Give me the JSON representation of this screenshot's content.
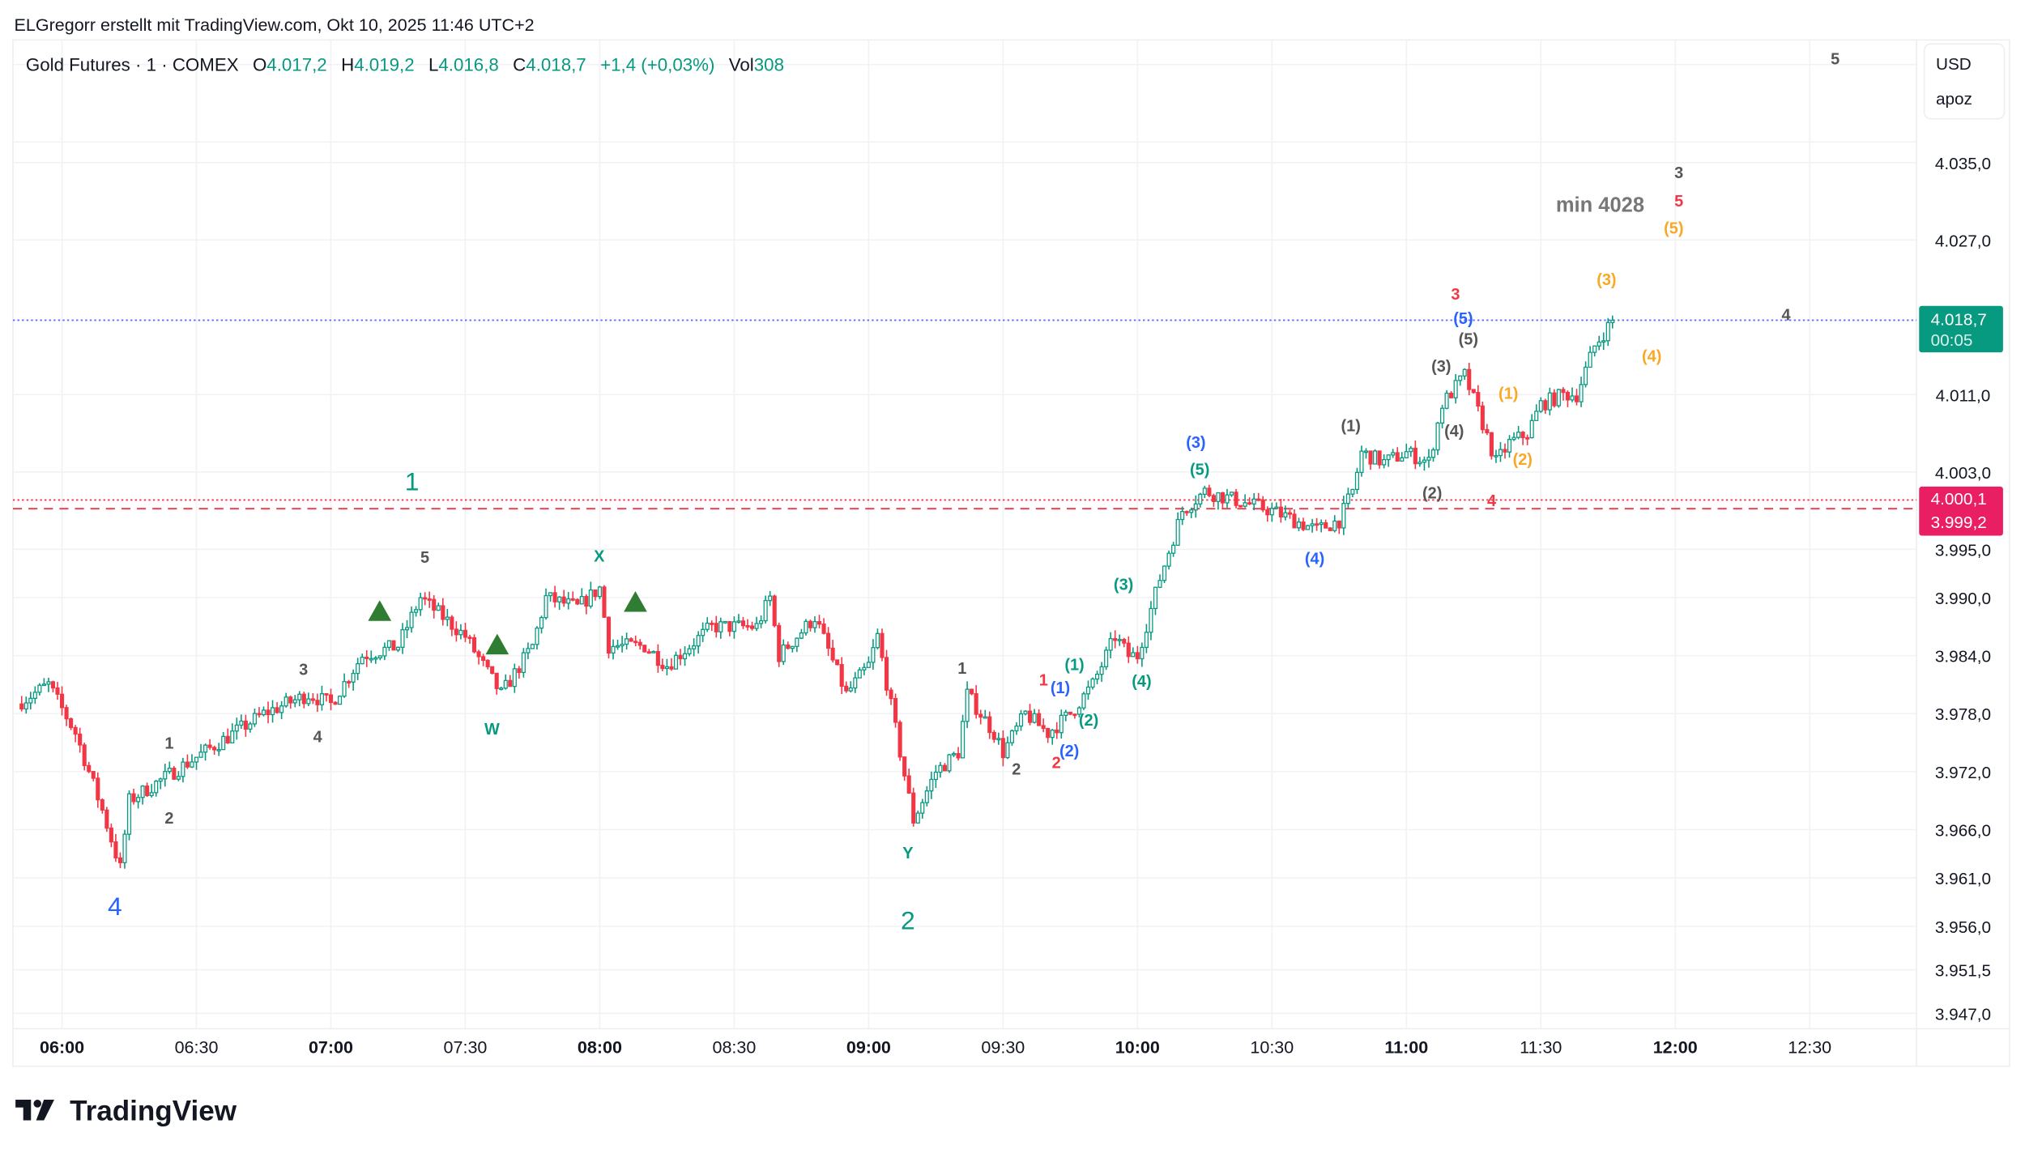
{
  "caption": "ELGregorr erstellt mit TradingView.com, Okt 10, 2025 11:46 UTC+2",
  "legend": {
    "symbol": "Gold Futures · 1 · COMEX",
    "o_label": "O",
    "o": "4.017,2",
    "h_label": "H",
    "h": "4.019,2",
    "l_label": "L",
    "l": "4.016,8",
    "c_label": "C",
    "c": "4.018,7",
    "change": "+1,4 (+0,03%)",
    "vol_label": "Vol",
    "vol": "308"
  },
  "axis_panel": {
    "currency": "USD",
    "unit": "apoz"
  },
  "price_tags": {
    "last": "4.018,7",
    "countdown": "00:05",
    "level_a": "4.000,1",
    "level_b": "3.999,2"
  },
  "footer": {
    "logo": "TradingView"
  },
  "colors": {
    "up": "#089981",
    "down": "#f23645",
    "blue": "#2962ff",
    "orange": "#f9a825",
    "gray": "#555555",
    "tag_red": "#e91e63",
    "triangle": "#2e7d32"
  },
  "chart_data": {
    "type": "candlestick",
    "title": "Gold Futures · 1 · COMEX",
    "interval_minutes": 1,
    "ylim": [
      3944,
      4043
    ],
    "y_ticks": [
      "4.035,0",
      "4.027,0",
      "4.011,0",
      "4.003,0",
      "3.995,0",
      "3.990,0",
      "3.984,0",
      "3.978,0",
      "3.972,0",
      "3.966,0",
      "3.961,0",
      "3.956,0",
      "3.951,5",
      "3.947,0"
    ],
    "y_tick_values": [
      4035,
      4027,
      4011,
      4003,
      3995,
      3990,
      3984,
      3978,
      3972,
      3966,
      3961,
      3956,
      3951.5,
      3947
    ],
    "x_ticks": [
      "06:00",
      "06:30",
      "07:00",
      "07:30",
      "08:00",
      "08:30",
      "09:00",
      "09:30",
      "10:00",
      "10:30",
      "11:00",
      "11:30",
      "12:00",
      "12:30"
    ],
    "x_tick_minutes": [
      360,
      390,
      420,
      450,
      480,
      510,
      540,
      570,
      600,
      630,
      660,
      690,
      720,
      750
    ],
    "xlim_minutes": [
      350,
      775
    ],
    "price_path": [
      [
        350,
        3979
      ],
      [
        357,
        3981
      ],
      [
        363,
        3976
      ],
      [
        369,
        3968
      ],
      [
        373,
        3962
      ],
      [
        375,
        3969
      ],
      [
        385,
        3972
      ],
      [
        395,
        3975
      ],
      [
        405,
        3978
      ],
      [
        415,
        3980
      ],
      [
        420,
        3979
      ],
      [
        427,
        3984
      ],
      [
        435,
        3985
      ],
      [
        440,
        3990
      ],
      [
        450,
        3986
      ],
      [
        458,
        3980
      ],
      [
        465,
        3985
      ],
      [
        468,
        3990
      ],
      [
        475,
        3989
      ],
      [
        480,
        3991
      ],
      [
        482,
        3985
      ],
      [
        490,
        3985
      ],
      [
        495,
        3983
      ],
      [
        505,
        3987
      ],
      [
        515,
        3987
      ],
      [
        518,
        3990
      ],
      [
        520,
        3984
      ],
      [
        528,
        3988
      ],
      [
        535,
        3980
      ],
      [
        540,
        3983
      ],
      [
        542,
        3986
      ],
      [
        547,
        3974
      ],
      [
        550,
        3967
      ],
      [
        555,
        3972
      ],
      [
        560,
        3974
      ],
      [
        562,
        3980
      ],
      [
        568,
        3976
      ],
      [
        570,
        3974
      ],
      [
        575,
        3978
      ],
      [
        580,
        3976
      ],
      [
        585,
        3978
      ],
      [
        590,
        3981
      ],
      [
        595,
        3986
      ],
      [
        598,
        3984
      ],
      [
        600,
        3984
      ],
      [
        605,
        3992
      ],
      [
        610,
        3999
      ],
      [
        615,
        4001
      ],
      [
        630,
        3999
      ],
      [
        640,
        3997
      ],
      [
        645,
        3998
      ],
      [
        648,
        4001
      ],
      [
        650,
        4005
      ],
      [
        655,
        4004
      ],
      [
        660,
        4005
      ],
      [
        665,
        4004
      ],
      [
        668,
        4010
      ],
      [
        673,
        4013
      ],
      [
        677,
        4008
      ],
      [
        680,
        4004
      ],
      [
        683,
        4006
      ],
      [
        687,
        4007
      ],
      [
        690,
        4010
      ],
      [
        695,
        4011
      ],
      [
        698,
        4011
      ],
      [
        702,
        4016
      ],
      [
        706,
        4018.7
      ]
    ],
    "horizontal_lines": [
      {
        "price": 4018.7,
        "style": "dotted",
        "color": "#5b6cff"
      },
      {
        "price": 4000.1,
        "style": "dotted",
        "color": "#f23645"
      },
      {
        "price": 3999.2,
        "style": "dashed",
        "color": "#f23645"
      }
    ],
    "annotations": {
      "big": [
        "1",
        "2",
        "4"
      ],
      "gray": [
        "5",
        "3",
        "1",
        "4",
        "2",
        "1",
        "2",
        "3",
        "4",
        "5",
        "(1)",
        "(3)",
        "(4)",
        "(5)",
        "(2)"
      ],
      "note": "min 4028",
      "green": [
        "W",
        "X",
        "Y",
        "(1)",
        "(2)",
        "(3)",
        "(4)",
        "(5)"
      ],
      "red": [
        "1",
        "2",
        "3",
        "5",
        "4"
      ],
      "blue": [
        "(1)",
        "(2)",
        "(3)",
        "(4)",
        "(5)"
      ],
      "orange": [
        "(3)",
        "(5)",
        "(4)",
        "(1)",
        "(2)"
      ]
    }
  }
}
